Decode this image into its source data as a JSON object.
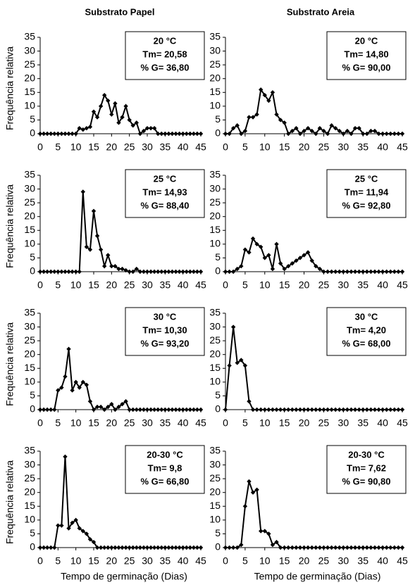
{
  "column_titles": [
    "Substrato Papel",
    "Substrato Areia"
  ],
  "chart_data": [
    {
      "type": "line",
      "annotation": [
        "20 °C",
        "Tm= 20,58",
        "% G= 36,80"
      ],
      "ylabel": "Frequência relativa",
      "color": "#000000",
      "marker": "diamond",
      "xlim": [
        0,
        45
      ],
      "xticks": [
        0,
        5,
        10,
        15,
        20,
        25,
        30,
        35,
        40,
        45
      ],
      "ylim": [
        0,
        35
      ],
      "yticks": [
        0,
        5,
        10,
        15,
        20,
        25,
        30,
        35
      ],
      "x": [
        0,
        1,
        2,
        3,
        4,
        5,
        6,
        7,
        8,
        9,
        10,
        11,
        12,
        13,
        14,
        15,
        16,
        17,
        18,
        19,
        20,
        21,
        22,
        23,
        24,
        25,
        26,
        27,
        28,
        29,
        30,
        31,
        32,
        33,
        34,
        35,
        36,
        37,
        38,
        39,
        40,
        41,
        42,
        43,
        44,
        45
      ],
      "values": [
        0,
        0,
        0,
        0,
        0,
        0,
        0,
        0,
        0,
        0,
        0,
        2,
        1.5,
        2,
        2.5,
        8,
        6,
        10,
        14,
        12,
        7,
        11,
        4,
        6,
        10,
        5,
        3,
        4,
        0,
        1,
        2,
        2,
        2,
        0,
        0,
        0,
        0,
        0,
        0,
        0,
        0,
        0,
        0,
        0,
        0,
        0
      ]
    },
    {
      "type": "line",
      "annotation": [
        "20 °C",
        "Tm= 14,80",
        "% G= 90,00"
      ],
      "color": "#000000",
      "marker": "diamond",
      "xlim": [
        0,
        45
      ],
      "xticks": [
        0,
        5,
        10,
        15,
        20,
        25,
        30,
        35,
        40,
        45
      ],
      "ylim": [
        0,
        35
      ],
      "yticks": [
        0,
        5,
        10,
        15,
        20,
        25,
        30,
        35
      ],
      "x": [
        0,
        1,
        2,
        3,
        4,
        5,
        6,
        7,
        8,
        9,
        10,
        11,
        12,
        13,
        14,
        15,
        16,
        17,
        18,
        19,
        20,
        21,
        22,
        23,
        24,
        25,
        26,
        27,
        28,
        29,
        30,
        31,
        32,
        33,
        34,
        35,
        36,
        37,
        38,
        39,
        40,
        41,
        42,
        43,
        44,
        45
      ],
      "values": [
        0,
        0,
        2,
        3,
        0,
        1,
        6,
        6,
        7,
        16,
        14,
        12,
        15,
        7,
        5,
        4,
        0,
        1,
        2,
        0,
        1,
        2,
        1,
        0,
        2,
        1,
        0,
        3,
        2,
        1,
        0,
        1,
        0,
        2,
        2,
        0,
        0,
        1,
        1,
        0,
        0,
        0,
        0,
        0,
        0,
        0
      ]
    },
    {
      "type": "line",
      "annotation": [
        "25 °C",
        "Tm= 14,93",
        "% G= 88,40"
      ],
      "ylabel": "Frequência relativa",
      "color": "#000000",
      "marker": "diamond",
      "xlim": [
        0,
        45
      ],
      "xticks": [
        0,
        5,
        10,
        15,
        20,
        25,
        30,
        35,
        40,
        45
      ],
      "ylim": [
        0,
        35
      ],
      "yticks": [
        0,
        5,
        10,
        15,
        20,
        25,
        30,
        35
      ],
      "x": [
        0,
        1,
        2,
        3,
        4,
        5,
        6,
        7,
        8,
        9,
        10,
        11,
        12,
        13,
        14,
        15,
        16,
        17,
        18,
        19,
        20,
        21,
        22,
        23,
        24,
        25,
        26,
        27,
        28,
        29,
        30,
        31,
        32,
        33,
        34,
        35,
        36,
        37,
        38,
        39,
        40,
        41,
        42,
        43,
        44,
        45
      ],
      "values": [
        0,
        0,
        0,
        0,
        0,
        0,
        0,
        0,
        0,
        0,
        0,
        0,
        29,
        9,
        8,
        22,
        13,
        8,
        2,
        6,
        2,
        2,
        1,
        1,
        0.5,
        0,
        0,
        1,
        0,
        0,
        0,
        0,
        0,
        0,
        0,
        0,
        0,
        0,
        0,
        0,
        0,
        0,
        0,
        0,
        0,
        0
      ]
    },
    {
      "type": "line",
      "annotation": [
        "25 °C",
        "Tm= 11,94",
        "% G= 92,80"
      ],
      "color": "#000000",
      "marker": "diamond",
      "xlim": [
        0,
        45
      ],
      "xticks": [
        0,
        5,
        10,
        15,
        20,
        25,
        30,
        35,
        40,
        45
      ],
      "ylim": [
        0,
        35
      ],
      "yticks": [
        0,
        5,
        10,
        15,
        20,
        25,
        30,
        35
      ],
      "x": [
        0,
        1,
        2,
        3,
        4,
        5,
        6,
        7,
        8,
        9,
        10,
        11,
        12,
        13,
        14,
        15,
        16,
        17,
        18,
        19,
        20,
        21,
        22,
        23,
        24,
        25,
        26,
        27,
        28,
        29,
        30,
        31,
        32,
        33,
        34,
        35,
        36,
        37,
        38,
        39,
        40,
        41,
        42,
        43,
        44,
        45
      ],
      "values": [
        0,
        0,
        0,
        1,
        2,
        8,
        7,
        12,
        10,
        9,
        5,
        6,
        1,
        10,
        3,
        1,
        2,
        3,
        4,
        5,
        6,
        7,
        4,
        2,
        1,
        0,
        0,
        0,
        0,
        0,
        0,
        0,
        0,
        0,
        0,
        0,
        0,
        0,
        0,
        0,
        0,
        0,
        0,
        0,
        0,
        0
      ]
    },
    {
      "type": "line",
      "annotation": [
        "30 °C",
        "Tm= 10,30",
        "% G= 93,20"
      ],
      "ylabel": "Frequência relativa",
      "color": "#000000",
      "marker": "diamond",
      "xlim": [
        0,
        45
      ],
      "xticks": [
        0,
        5,
        10,
        15,
        20,
        25,
        30,
        35,
        40,
        45
      ],
      "ylim": [
        0,
        35
      ],
      "yticks": [
        0,
        5,
        10,
        15,
        20,
        25,
        30,
        35
      ],
      "x": [
        0,
        1,
        2,
        3,
        4,
        5,
        6,
        7,
        8,
        9,
        10,
        11,
        12,
        13,
        14,
        15,
        16,
        17,
        18,
        19,
        20,
        21,
        22,
        23,
        24,
        25,
        26,
        27,
        28,
        29,
        30,
        31,
        32,
        33,
        34,
        35,
        36,
        37,
        38,
        39,
        40,
        41,
        42,
        43,
        44,
        45
      ],
      "values": [
        0,
        0,
        0,
        0,
        0,
        7,
        8,
        12,
        22,
        7,
        10,
        8,
        10,
        9,
        3,
        0,
        1,
        1,
        0,
        1,
        2,
        0,
        1,
        2,
        3,
        0,
        0,
        0,
        0,
        0,
        0,
        0,
        0,
        0,
        0,
        0,
        0,
        0,
        0,
        0,
        0,
        0,
        0,
        0,
        0,
        0
      ]
    },
    {
      "type": "line",
      "annotation": [
        "30 °C",
        "Tm= 4,20",
        "% G= 68,00"
      ],
      "color": "#000000",
      "marker": "diamond",
      "xlim": [
        0,
        45
      ],
      "xticks": [
        0,
        5,
        10,
        15,
        20,
        25,
        30,
        35,
        40,
        45
      ],
      "ylim": [
        0,
        35
      ],
      "yticks": [
        0,
        5,
        10,
        15,
        20,
        25,
        30,
        35
      ],
      "x": [
        0,
        1,
        2,
        3,
        4,
        5,
        6,
        7,
        8,
        9,
        10,
        11,
        12,
        13,
        14,
        15,
        16,
        17,
        18,
        19,
        20,
        21,
        22,
        23,
        24,
        25,
        26,
        27,
        28,
        29,
        30,
        31,
        32,
        33,
        34,
        35,
        36,
        37,
        38,
        39,
        40,
        41,
        42,
        43,
        44,
        45
      ],
      "values": [
        0,
        16,
        30,
        17,
        18,
        16,
        3,
        0,
        0,
        0,
        0,
        0,
        0,
        0,
        0,
        0,
        0,
        0,
        0,
        0,
        0,
        0,
        0,
        0,
        0,
        0,
        0,
        0,
        0,
        0,
        0,
        0,
        0,
        0,
        0,
        0,
        0,
        0,
        0,
        0,
        0,
        0,
        0,
        0,
        0,
        0
      ]
    },
    {
      "type": "line",
      "annotation": [
        "20-30 °C",
        "Tm= 9,8",
        "% G= 66,80"
      ],
      "ylabel": "Frequência relativa",
      "xlabel": "Tempo de germinação (Dias)",
      "color": "#000000",
      "marker": "diamond",
      "xlim": [
        0,
        45
      ],
      "xticks": [
        0,
        5,
        10,
        15,
        20,
        25,
        30,
        35,
        40,
        45
      ],
      "ylim": [
        0,
        35
      ],
      "yticks": [
        0,
        5,
        10,
        15,
        20,
        25,
        30,
        35
      ],
      "x": [
        0,
        1,
        2,
        3,
        4,
        5,
        6,
        7,
        8,
        9,
        10,
        11,
        12,
        13,
        14,
        15,
        16,
        17,
        18,
        19,
        20,
        21,
        22,
        23,
        24,
        25,
        26,
        27,
        28,
        29,
        30,
        31,
        32,
        33,
        34,
        35,
        36,
        37,
        38,
        39,
        40,
        41,
        42,
        43,
        44,
        45
      ],
      "values": [
        0,
        0,
        0,
        0,
        0,
        8,
        8,
        33,
        7,
        9,
        10,
        7,
        6,
        5,
        3,
        2,
        0,
        0,
        0,
        0,
        0,
        0,
        0,
        0,
        0,
        0,
        0,
        0,
        0,
        0,
        0,
        0,
        0,
        0,
        0,
        0,
        0,
        0,
        0,
        0,
        0,
        0,
        0,
        0,
        0,
        0
      ]
    },
    {
      "type": "line",
      "annotation": [
        "20-30 °C",
        "Tm= 7,62",
        "% G= 90,80"
      ],
      "xlabel": "Tempo de germinação (Dias)",
      "color": "#000000",
      "marker": "diamond",
      "xlim": [
        0,
        45
      ],
      "xticks": [
        0,
        5,
        10,
        15,
        20,
        25,
        30,
        35,
        40,
        45
      ],
      "ylim": [
        0,
        35
      ],
      "yticks": [
        0,
        5,
        10,
        15,
        20,
        25,
        30,
        35
      ],
      "x": [
        0,
        1,
        2,
        3,
        4,
        5,
        6,
        7,
        8,
        9,
        10,
        11,
        12,
        13,
        14,
        15,
        16,
        17,
        18,
        19,
        20,
        21,
        22,
        23,
        24,
        25,
        26,
        27,
        28,
        29,
        30,
        31,
        32,
        33,
        34,
        35,
        36,
        37,
        38,
        39,
        40,
        41,
        42,
        43,
        44,
        45
      ],
      "values": [
        0,
        0,
        0,
        0,
        1,
        15,
        24,
        20,
        21,
        6,
        6,
        5,
        1,
        2,
        0,
        0,
        0,
        0,
        0,
        0,
        0,
        0,
        0,
        0,
        0,
        0,
        0,
        0,
        0,
        0,
        0,
        0,
        0,
        0,
        0,
        0,
        0,
        0,
        0,
        0,
        0,
        0,
        0,
        0,
        0,
        0
      ]
    }
  ]
}
